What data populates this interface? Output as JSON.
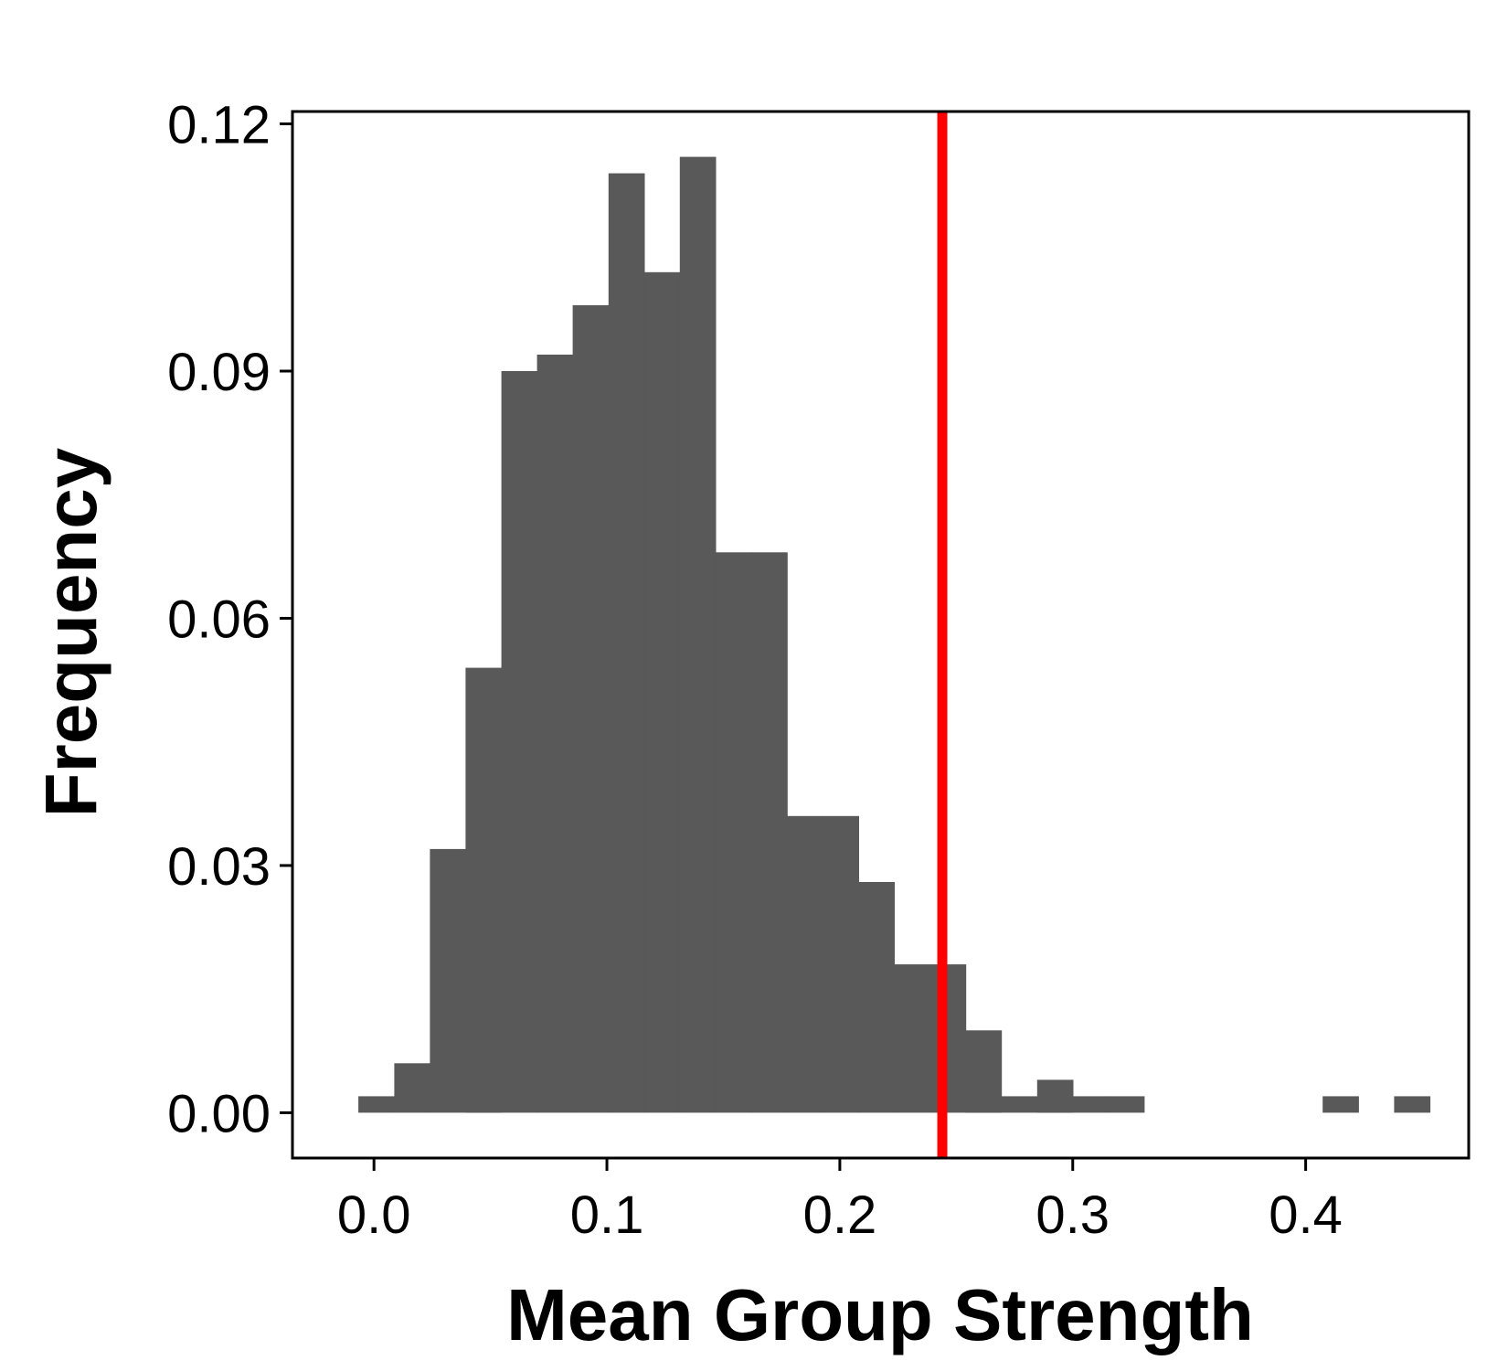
{
  "chart_data": {
    "type": "bar",
    "xlabel": "Mean Group Strength",
    "ylabel": "Frequency",
    "xlim": [
      -0.035,
      0.47
    ],
    "ylim": [
      -0.0055,
      0.1215
    ],
    "x_ticks": [
      "0.0",
      "0.1",
      "0.2",
      "0.3",
      "0.4"
    ],
    "x_tick_values": [
      0.0,
      0.1,
      0.2,
      0.3,
      0.4
    ],
    "y_ticks": [
      "0.00",
      "0.03",
      "0.06",
      "0.09",
      "0.12"
    ],
    "y_tick_values": [
      0.0,
      0.03,
      0.06,
      0.09,
      0.12
    ],
    "bin_width": 0.01534,
    "bin_starts": [
      -0.0067,
      0.0087,
      0.024,
      0.0393,
      0.0547,
      0.07,
      0.0853,
      0.1007,
      0.116,
      0.1313,
      0.1467,
      0.162,
      0.1773,
      0.1927,
      0.208,
      0.2233,
      0.2387,
      0.254,
      0.2693,
      0.2847,
      0.3,
      0.3153,
      0.3307,
      0.346,
      0.3613,
      0.3767,
      0.392,
      0.4073,
      0.4227,
      0.438
    ],
    "values": [
      0.002,
      0.006,
      0.032,
      0.054,
      0.09,
      0.092,
      0.098,
      0.114,
      0.102,
      0.116,
      0.068,
      0.068,
      0.036,
      0.036,
      0.028,
      0.018,
      0.018,
      0.01,
      0.002,
      0.004,
      0.002,
      0.002,
      0,
      0,
      0,
      0,
      0,
      0.002,
      0,
      0.002
    ],
    "reference_line": {
      "x": 0.244,
      "color": "#ff0000"
    },
    "bar_color": "#595959",
    "grid": false
  }
}
